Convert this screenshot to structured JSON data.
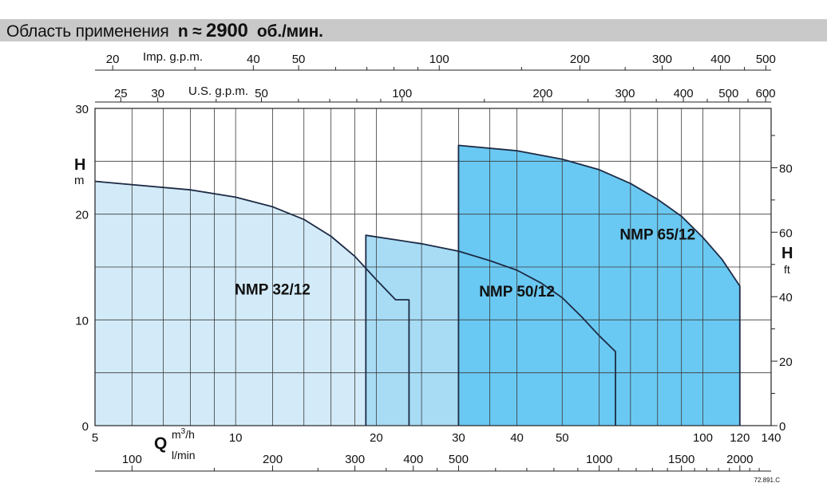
{
  "header": {
    "title": "Область применения",
    "speed_prefix": "n ≈",
    "speed_value": "2900",
    "speed_unit": "об./мин."
  },
  "chart_data": {
    "type": "area",
    "title": "Область применения n ≈ 2900 об./мин.",
    "ref_code": "72.891.C",
    "left_axis": {
      "label": "H",
      "unit": "m",
      "scale": "linear",
      "range": [
        0,
        30
      ],
      "ticks": [
        0,
        10,
        20,
        30
      ]
    },
    "right_axis": {
      "label": "H",
      "unit": "ft",
      "scale": "linear",
      "range": [
        0,
        98.4
      ],
      "ticks": [
        0,
        20,
        40,
        60,
        80
      ]
    },
    "bottom_axis": {
      "label": "Q",
      "unit": "m³/h",
      "scale": "log",
      "range": [
        5,
        140
      ],
      "ticks": [
        5,
        10,
        20,
        30,
        40,
        50,
        100,
        120,
        140
      ],
      "gridlines": [
        5,
        6,
        7,
        8,
        9,
        10,
        12,
        14,
        16,
        18,
        20,
        25,
        30,
        35,
        40,
        50,
        60,
        70,
        80,
        90,
        100,
        120,
        140
      ]
    },
    "lmin_axis": {
      "unit": "l/min",
      "ticks": [
        100,
        200,
        300,
        400,
        500,
        1000,
        1500,
        2000
      ],
      "minor_ticks": [
        150,
        250,
        350,
        450,
        600,
        700,
        800,
        900,
        1100,
        1200,
        1300,
        1400,
        1600,
        1700,
        1800,
        1900,
        2100,
        2200
      ]
    },
    "us_gpm_axis": {
      "label": "U.S. g.p.m.",
      "ticks": [
        25,
        30,
        50,
        100,
        200,
        300,
        400,
        500,
        600
      ],
      "minor_ticks": [
        40,
        60,
        70,
        80,
        90,
        150,
        250,
        350,
        450,
        550
      ]
    },
    "imp_gpm_axis": {
      "label": "Imp. g.p.m.",
      "ticks": [
        20,
        40,
        50,
        100,
        200,
        300,
        400,
        500
      ],
      "minor_ticks": [
        30,
        60,
        70,
        80,
        90,
        150,
        250,
        350,
        450
      ]
    },
    "series": [
      {
        "name": "NMP 32/12",
        "color": "#d3ebf8",
        "curve": [
          [
            5,
            23.1
          ],
          [
            8,
            22.3
          ],
          [
            10,
            21.6
          ],
          [
            12,
            20.7
          ],
          [
            14,
            19.5
          ],
          [
            16,
            17.9
          ],
          [
            18,
            16.0
          ],
          [
            20,
            13.8
          ],
          [
            22,
            11.9
          ],
          [
            23.5,
            11.9
          ]
        ]
      },
      {
        "name": "NMP 50/12",
        "color": "#a8dcf5",
        "curve": [
          [
            19,
            18.0
          ],
          [
            25,
            17.2
          ],
          [
            30,
            16.5
          ],
          [
            35,
            15.6
          ],
          [
            40,
            14.7
          ],
          [
            45,
            13.5
          ],
          [
            50,
            12.1
          ],
          [
            55,
            10.3
          ],
          [
            60,
            8.5
          ],
          [
            65,
            7.0
          ]
        ]
      },
      {
        "name": "NMP 65/12",
        "color": "#6ac9f2",
        "curve": [
          [
            30,
            26.5
          ],
          [
            40,
            26.0
          ],
          [
            50,
            25.2
          ],
          [
            60,
            24.2
          ],
          [
            70,
            22.9
          ],
          [
            80,
            21.4
          ],
          [
            90,
            19.8
          ],
          [
            100,
            17.8
          ],
          [
            110,
            15.7
          ],
          [
            120,
            13.2
          ]
        ]
      }
    ]
  }
}
